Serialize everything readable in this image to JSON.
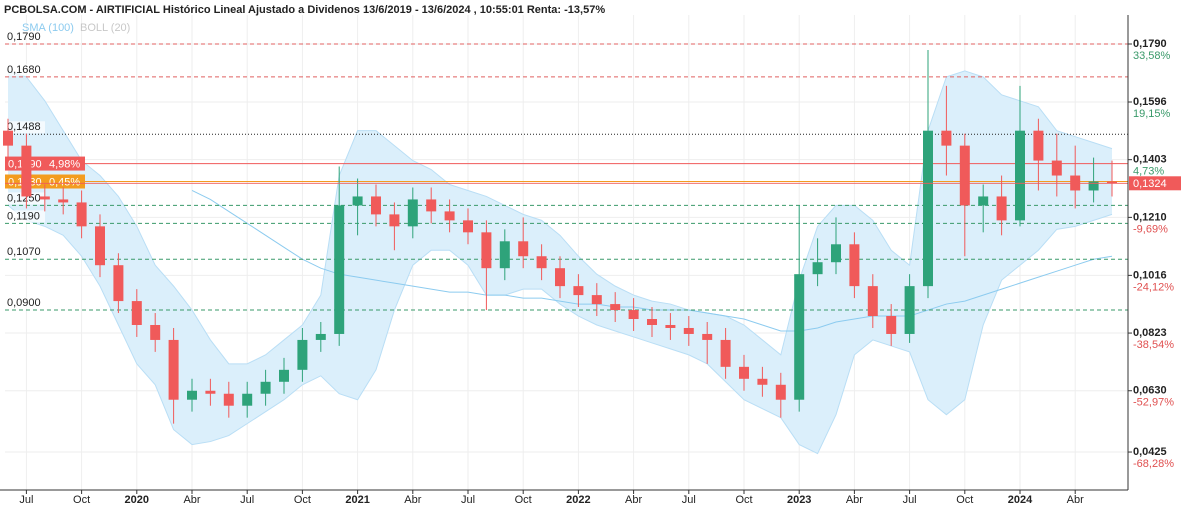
{
  "chart_data": {
    "type": "candlestick",
    "title": "PCBOLSA.COM - AIRTIFICIAL Histórico Lineal Ajustado a Dividenos 13/6/2019 - 13/6/2024 , 10:55:01 Renta: -13,57%",
    "categories": [
      null,
      "Jul",
      null,
      null,
      "Oct",
      null,
      null,
      "2020",
      null,
      null,
      "Abr",
      null,
      null,
      "Jul",
      null,
      null,
      "Oct",
      null,
      null,
      "2021",
      null,
      null,
      "Abr",
      null,
      null,
      "Jul",
      null,
      null,
      "Oct",
      null,
      null,
      "2022",
      null,
      null,
      "Abr",
      null,
      null,
      "Jul",
      null,
      null,
      "Oct",
      null,
      null,
      "2023",
      null,
      null,
      "Abr",
      null,
      null,
      "Jul",
      null,
      null,
      "Oct",
      null,
      null,
      "2024",
      null,
      null,
      "Abr",
      null,
      null
    ],
    "open": [
      0.15,
      0.145,
      0.128,
      0.127,
      0.126,
      0.118,
      0.105,
      0.093,
      0.085,
      0.08,
      0.06,
      0.063,
      0.062,
      0.058,
      0.062,
      0.066,
      0.07,
      0.08,
      0.082,
      0.125,
      0.128,
      0.122,
      0.118,
      0.127,
      0.123,
      0.12,
      0.116,
      0.104,
      0.113,
      0.108,
      0.104,
      0.098,
      0.095,
      0.092,
      0.09,
      0.087,
      0.085,
      0.084,
      0.082,
      0.08,
      0.071,
      0.067,
      0.065,
      0.06,
      0.102,
      0.106,
      0.112,
      0.098,
      0.088,
      0.082,
      0.098,
      0.15,
      0.145,
      0.125,
      0.128,
      0.12,
      0.15,
      0.14,
      0.135,
      0.13,
      0.133
    ],
    "high": [
      0.154,
      0.149,
      0.132,
      0.131,
      0.13,
      0.122,
      0.109,
      0.097,
      0.089,
      0.084,
      0.067,
      0.067,
      0.066,
      0.066,
      0.07,
      0.074,
      0.084,
      0.086,
      0.138,
      0.134,
      0.132,
      0.126,
      0.131,
      0.131,
      0.127,
      0.124,
      0.12,
      0.117,
      0.121,
      0.112,
      0.108,
      0.102,
      0.099,
      0.096,
      0.094,
      0.091,
      0.089,
      0.088,
      0.086,
      0.084,
      0.075,
      0.071,
      0.069,
      0.125,
      0.114,
      0.121,
      0.116,
      0.102,
      0.092,
      0.102,
      0.177,
      0.165,
      0.149,
      0.132,
      0.135,
      0.165,
      0.154,
      0.149,
      0.145,
      0.141,
      0.14
    ],
    "low": [
      0.141,
      0.124,
      0.123,
      0.122,
      0.114,
      0.101,
      0.089,
      0.081,
      0.076,
      0.052,
      0.056,
      0.058,
      0.054,
      0.054,
      0.058,
      0.062,
      0.066,
      0.076,
      0.078,
      0.115,
      0.118,
      0.11,
      0.114,
      0.119,
      0.116,
      0.112,
      0.09,
      0.1,
      0.104,
      0.1,
      0.094,
      0.091,
      0.088,
      0.086,
      0.083,
      0.081,
      0.08,
      0.078,
      0.072,
      0.067,
      0.063,
      0.061,
      0.054,
      0.056,
      0.098,
      0.102,
      0.094,
      0.084,
      0.078,
      0.079,
      0.094,
      0.135,
      0.108,
      0.116,
      0.115,
      0.118,
      0.13,
      0.128,
      0.124,
      0.126,
      0.128
    ],
    "close": [
      0.145,
      0.128,
      0.127,
      0.126,
      0.118,
      0.105,
      0.093,
      0.085,
      0.08,
      0.06,
      0.063,
      0.062,
      0.058,
      0.062,
      0.066,
      0.07,
      0.08,
      0.082,
      0.125,
      0.128,
      0.122,
      0.118,
      0.127,
      0.123,
      0.12,
      0.116,
      0.104,
      0.113,
      0.108,
      0.104,
      0.098,
      0.095,
      0.092,
      0.09,
      0.087,
      0.085,
      0.084,
      0.082,
      0.08,
      0.071,
      0.067,
      0.065,
      0.06,
      0.102,
      0.106,
      0.112,
      0.098,
      0.088,
      0.082,
      0.098,
      0.15,
      0.145,
      0.125,
      0.128,
      0.12,
      0.15,
      0.14,
      0.135,
      0.13,
      0.133,
      0.1324
    ],
    "up_color": "#2ea37a",
    "down_color": "#f05a5a",
    "indicators": [
      {
        "name": "SMA (100)",
        "color": "#8ccbef",
        "values": [
          null,
          null,
          null,
          null,
          null,
          null,
          null,
          null,
          null,
          null,
          0.13,
          0.127,
          0.123,
          0.119,
          0.115,
          0.111,
          0.107,
          0.104,
          0.102,
          0.101,
          0.1,
          0.099,
          0.098,
          0.097,
          0.096,
          0.096,
          0.095,
          0.095,
          0.094,
          0.094,
          0.093,
          0.092,
          0.092,
          0.091,
          0.091,
          0.09,
          0.09,
          0.09,
          0.089,
          0.088,
          0.087,
          0.085,
          0.083,
          0.083,
          0.084,
          0.086,
          0.087,
          0.088,
          0.088,
          0.088,
          0.09,
          0.092,
          0.093,
          0.095,
          0.097,
          0.099,
          0.101,
          0.103,
          0.105,
          0.107,
          0.108
        ]
      },
      {
        "name": "BOLL (20)",
        "color": "#c8c8c8",
        "fill": "#dbeffb",
        "upper": [
          0.17,
          0.168,
          0.16,
          0.15,
          0.14,
          0.135,
          0.128,
          0.118,
          0.105,
          0.098,
          0.09,
          0.08,
          0.072,
          0.072,
          0.075,
          0.08,
          0.085,
          0.095,
          0.135,
          0.15,
          0.15,
          0.145,
          0.14,
          0.137,
          0.132,
          0.13,
          0.128,
          0.125,
          0.122,
          0.12,
          0.115,
          0.108,
          0.102,
          0.098,
          0.095,
          0.093,
          0.092,
          0.09,
          0.089,
          0.088,
          0.085,
          0.08,
          0.075,
          0.1,
          0.118,
          0.125,
          0.125,
          0.12,
          0.11,
          0.105,
          0.15,
          0.168,
          0.17,
          0.168,
          0.162,
          0.16,
          0.158,
          0.15,
          0.148,
          0.146,
          0.144
        ],
        "lower": [
          0.125,
          0.12,
          0.118,
          0.115,
          0.108,
          0.098,
          0.085,
          0.072,
          0.065,
          0.05,
          0.045,
          0.046,
          0.048,
          0.052,
          0.056,
          0.06,
          0.065,
          0.068,
          0.062,
          0.06,
          0.07,
          0.09,
          0.105,
          0.11,
          0.11,
          0.105,
          0.095,
          0.095,
          0.097,
          0.097,
          0.092,
          0.088,
          0.085,
          0.083,
          0.081,
          0.079,
          0.077,
          0.075,
          0.072,
          0.066,
          0.06,
          0.057,
          0.054,
          0.045,
          0.042,
          0.055,
          0.075,
          0.08,
          0.078,
          0.076,
          0.06,
          0.055,
          0.06,
          0.085,
          0.1,
          0.105,
          0.11,
          0.117,
          0.118,
          0.12,
          0.122
        ]
      }
    ],
    "ylim": [
      0.0298,
      0.1887
    ],
    "yticks": [
      {
        "value": 0.179,
        "label": "0,1790",
        "pct": "33,58%"
      },
      {
        "value": 0.1596,
        "label": "0,1596",
        "pct": "19,15%"
      },
      {
        "value": 0.1403,
        "label": "0,1403",
        "pct": "4,73%"
      },
      {
        "value": 0.121,
        "label": "0,1210",
        "pct": "-9,69%"
      },
      {
        "value": 0.1016,
        "label": "0,1016",
        "pct": "-24,12%"
      },
      {
        "value": 0.0823,
        "label": "0,0823",
        "pct": "-38,54%"
      },
      {
        "value": 0.063,
        "label": "0,0630",
        "pct": "-52,97%"
      },
      {
        "value": 0.0425,
        "label": "0,0425",
        "pct": "-68,28%"
      }
    ],
    "grid": true,
    "levels": [
      {
        "value": 0.179,
        "label": "0,1790",
        "color": "#e06060",
        "style": "dashed"
      },
      {
        "value": 0.168,
        "label": "0,1680",
        "color": "#e06060",
        "style": "dashed"
      },
      {
        "value": 0.1488,
        "label": "0,1488",
        "color": "#222222",
        "style": "dotted"
      },
      {
        "value": 0.139,
        "label": "0,1390",
        "pct": "4,98%",
        "color": "#f05a5a",
        "style": "box"
      },
      {
        "value": 0.133,
        "label": "0,1330",
        "pct": "0,45%",
        "color": "#f39c1f",
        "style": "box"
      },
      {
        "value": 0.125,
        "label": "0,1250",
        "color": "#3a9a6a",
        "style": "dashed"
      },
      {
        "value": 0.119,
        "label": "0,1190",
        "color": "#3a9a6a",
        "style": "dashed"
      },
      {
        "value": 0.107,
        "label": "0,1070",
        "color": "#3a9a6a",
        "style": "dashed"
      },
      {
        "value": 0.09,
        "label": "0,0900",
        "color": "#3a9a6a",
        "style": "dashed"
      }
    ],
    "last": {
      "value": 0.1324,
      "label": "0,1324",
      "color": "#f05a5a"
    }
  }
}
